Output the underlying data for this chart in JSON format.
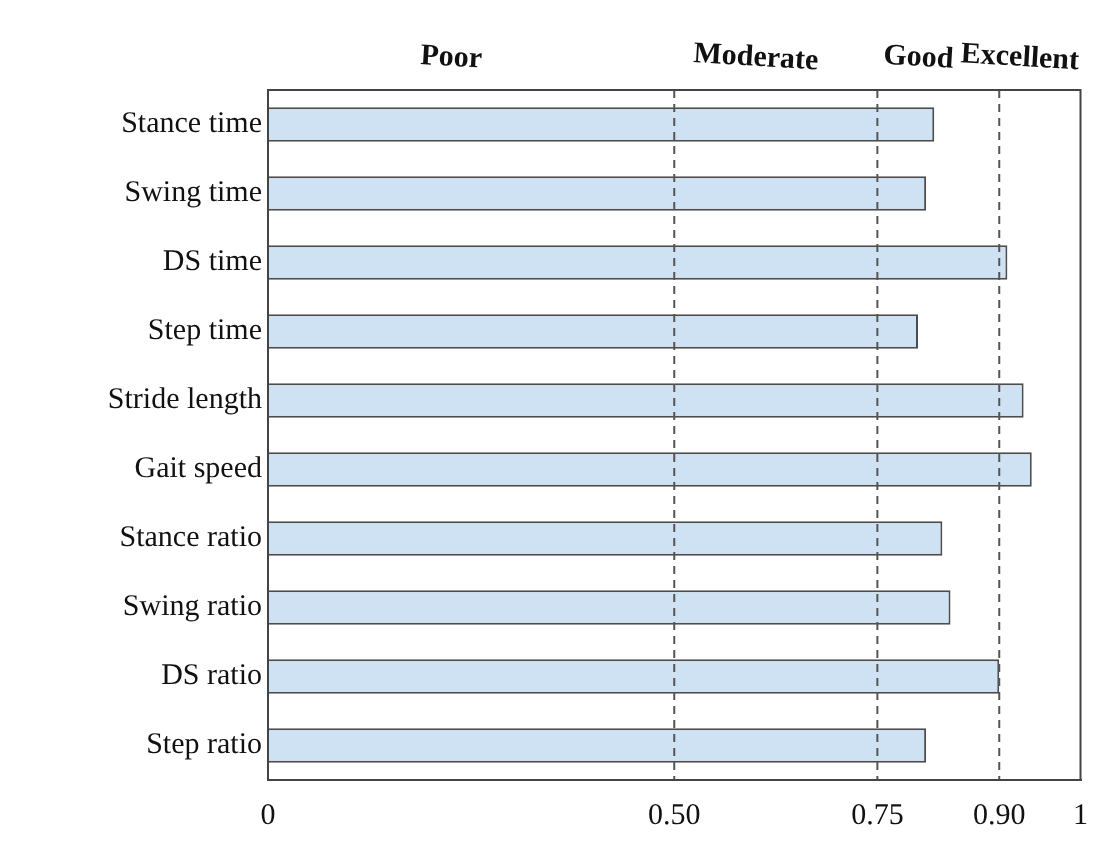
{
  "chart_data": {
    "type": "bar",
    "orientation": "horizontal",
    "categories": [
      "Stance time",
      "Swing time",
      "DS time",
      "Step time",
      "Stride length",
      "Gait speed",
      "Stance ratio",
      "Swing ratio",
      "DS ratio",
      "Step ratio"
    ],
    "values": [
      0.82,
      0.81,
      0.91,
      0.8,
      0.93,
      0.94,
      0.83,
      0.84,
      0.9,
      0.81
    ],
    "color": "#cfe2f3",
    "xlim": [
      0,
      1
    ],
    "xticks": [
      0,
      {
        "value": 0.5,
        "label": "0.50"
      },
      {
        "value": 0.75,
        "label": "0.75"
      },
      {
        "value": 0.9,
        "label": "0.90"
      },
      1
    ],
    "ref_lines": [
      {
        "axis": "x",
        "value": 0.5,
        "line_style": "dashed"
      },
      {
        "axis": "x",
        "value": 0.75,
        "line_style": "dashed"
      },
      {
        "axis": "x",
        "value": 0.9,
        "line_style": "dashed"
      }
    ],
    "annotations": [
      "Poor",
      "Moderate",
      "Good",
      "Excellent"
    ],
    "grid": false,
    "legend": false
  }
}
